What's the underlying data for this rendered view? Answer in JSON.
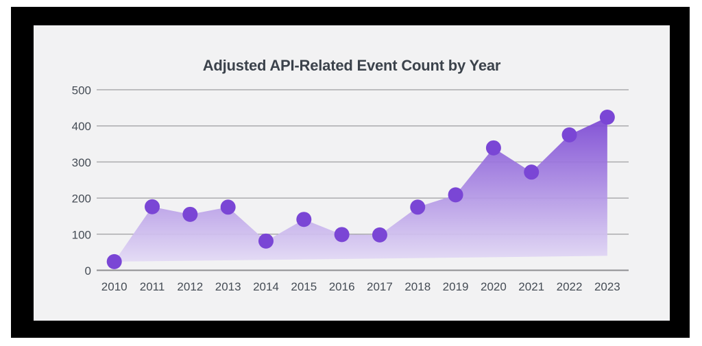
{
  "chart_data": {
    "type": "area",
    "title": "Adjusted API-Related Event Count by Year",
    "categories": [
      "2010",
      "2011",
      "2012",
      "2013",
      "2014",
      "2015",
      "2016",
      "2017",
      "2018",
      "2019",
      "2020",
      "2021",
      "2022",
      "2023"
    ],
    "values": [
      24,
      176,
      155,
      175,
      81,
      141,
      99,
      98,
      175,
      209,
      339,
      272,
      375,
      424
    ],
    "baseline_end_value": 40,
    "y_ticks": [
      0,
      100,
      200,
      300,
      400,
      500
    ],
    "ylim": [
      0,
      500
    ],
    "xlabel": "",
    "ylabel": "",
    "grid": true,
    "legend": "none",
    "colors": {
      "page_bg": "#ffffff",
      "frame": "#000000",
      "panel_bg": "#f2f2f3",
      "title": "#3b424b",
      "tick": "#454c55",
      "grid": "#ababae",
      "axis": "#8f8f92",
      "dot": "#7a46d5",
      "gradient_top": "#7a46d3",
      "gradient_bottom": "#ece7f8"
    }
  }
}
